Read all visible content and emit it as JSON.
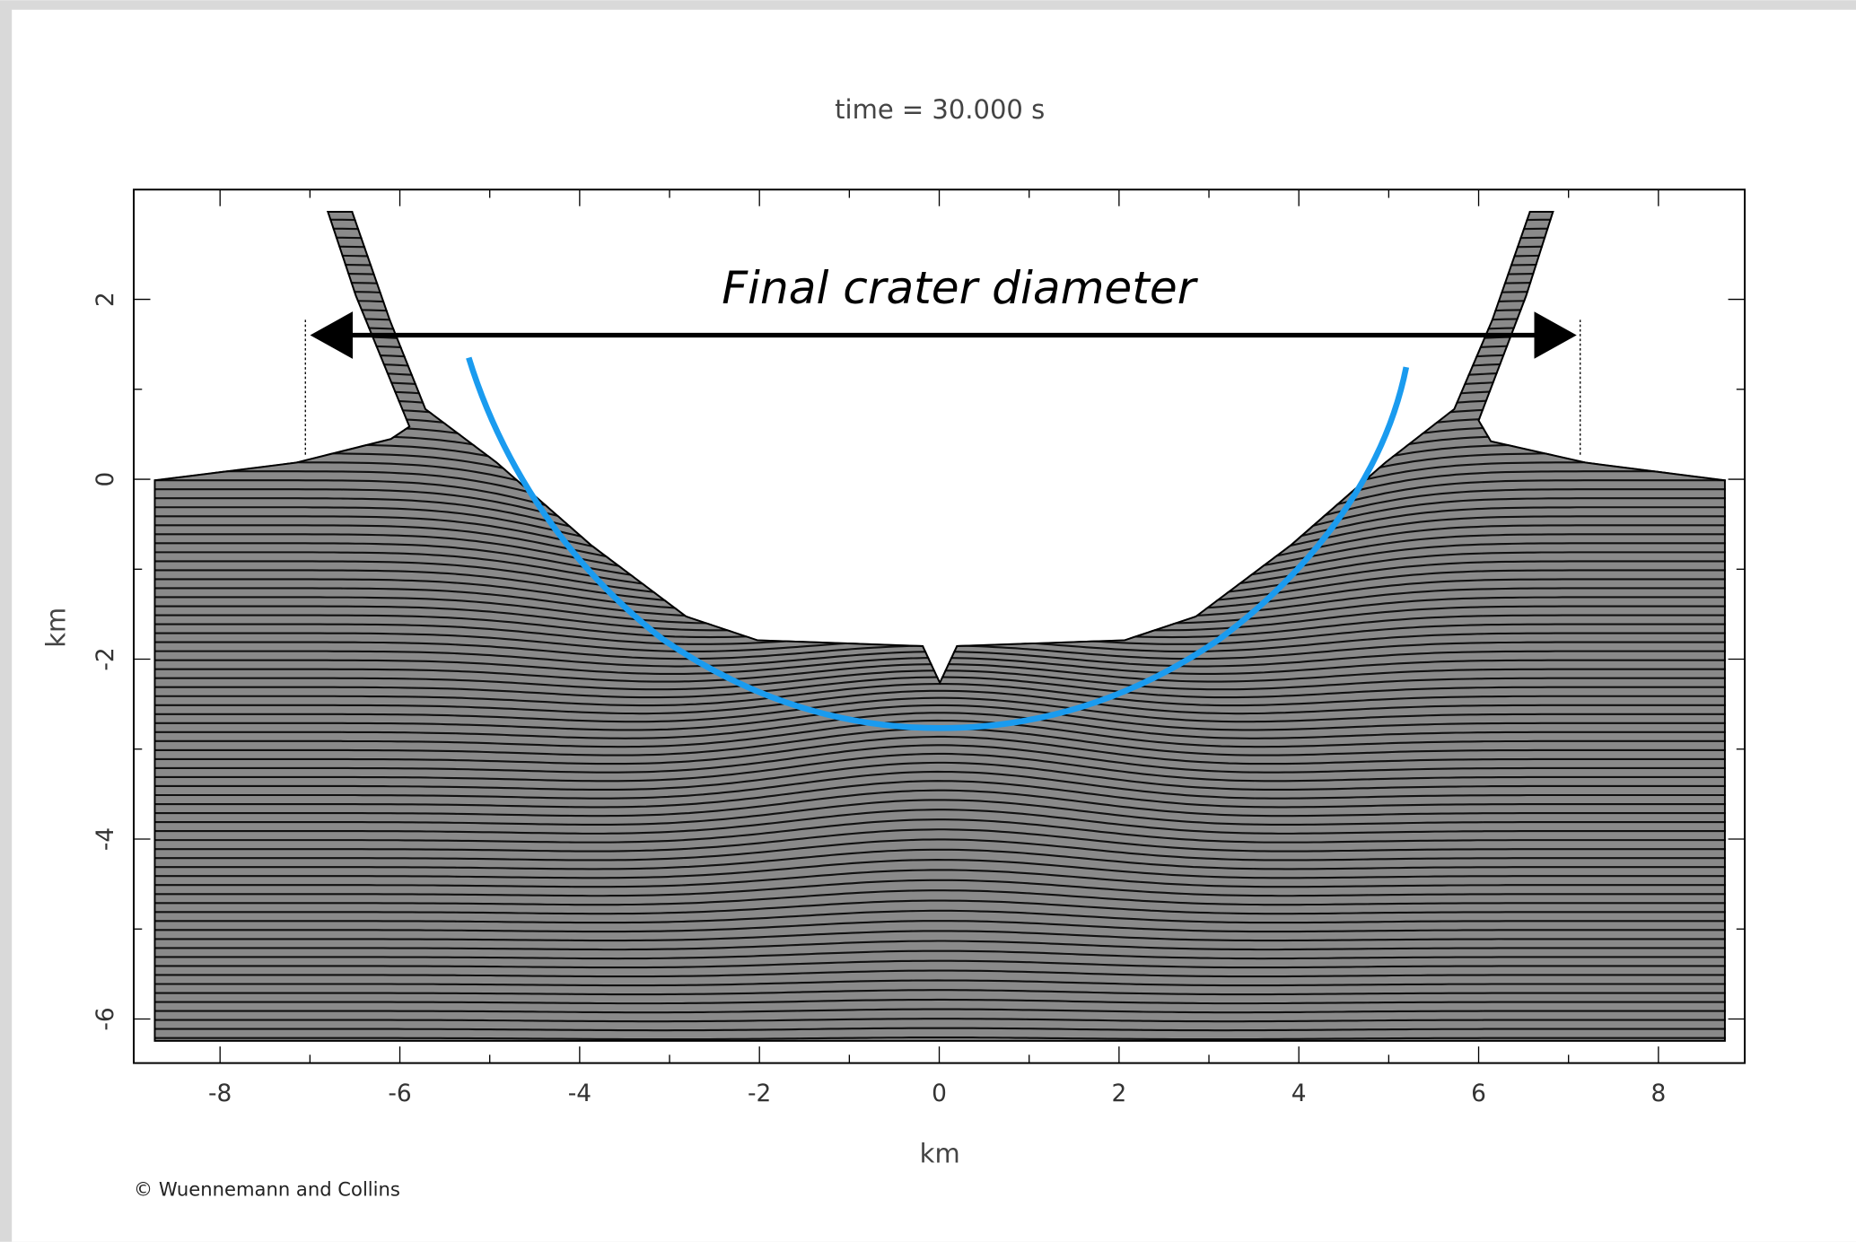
{
  "chart_data": {
    "type": "cross-section",
    "title": "time =  30.000 s",
    "x_label": "km",
    "y_label": "km",
    "annotation": "Final crater diameter",
    "credit": "© Wuennemann and Collins",
    "xlim": [
      -8.96,
      8.96
    ],
    "ylim": [
      -6.49,
      3.22
    ],
    "xticks": [
      -8,
      -6,
      -4,
      -2,
      0,
      2,
      4,
      6,
      8
    ],
    "yticks": [
      -6,
      -4,
      -2,
      0,
      2
    ]
  }
}
